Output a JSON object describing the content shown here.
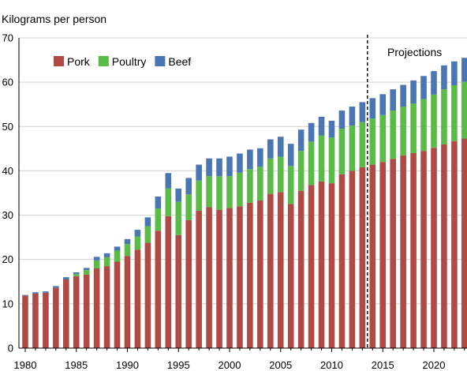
{
  "chart_data": {
    "type": "bar",
    "stacked": true,
    "ylabel": "Kilograms per person",
    "ylim": [
      0,
      70
    ],
    "yticks": [
      0,
      10,
      20,
      30,
      40,
      50,
      60,
      70
    ],
    "xlim": [
      1980,
      2023
    ],
    "xticks": [
      1980,
      1985,
      1990,
      1995,
      2000,
      2005,
      2010,
      2015,
      2020
    ],
    "grid": true,
    "legend_position": "top-left",
    "categories": [
      1980,
      1981,
      1982,
      1983,
      1984,
      1985,
      1986,
      1987,
      1988,
      1989,
      1990,
      1991,
      1992,
      1993,
      1994,
      1995,
      1996,
      1997,
      1998,
      1999,
      2000,
      2001,
      2002,
      2003,
      2004,
      2005,
      2006,
      2007,
      2008,
      2009,
      2010,
      2011,
      2012,
      2013,
      2014,
      2015,
      2016,
      2017,
      2018,
      2019,
      2020,
      2021,
      2022,
      2023
    ],
    "series": [
      {
        "name": "Pork",
        "color": "#b04a45",
        "values": [
          11.8,
          12.3,
          12.5,
          13.6,
          15.5,
          16.2,
          16.6,
          18.0,
          18.5,
          19.5,
          20.8,
          22.2,
          23.8,
          26.5,
          29.8,
          25.5,
          28.9,
          31.0,
          31.8,
          31.2,
          31.6,
          32.0,
          32.8,
          33.3,
          34.8,
          35.2,
          32.5,
          35.5,
          36.8,
          37.6,
          37.2,
          39.2,
          40.0,
          40.8,
          41.4,
          42.0,
          42.7,
          43.5,
          44.0,
          44.5,
          45.2,
          46.0,
          46.7,
          47.3
        ]
      },
      {
        "name": "Poultry",
        "color": "#5abb47",
        "values": [
          0.0,
          0.0,
          0.0,
          0.0,
          0.0,
          0.5,
          1.0,
          1.8,
          2.0,
          2.5,
          2.7,
          3.0,
          3.7,
          5.0,
          6.2,
          7.5,
          5.8,
          6.8,
          7.0,
          7.6,
          7.2,
          7.6,
          7.6,
          7.6,
          8.0,
          8.0,
          8.6,
          9.0,
          9.8,
          10.4,
          10.3,
          10.3,
          10.2,
          10.2,
          10.4,
          10.6,
          10.9,
          11.0,
          11.2,
          11.7,
          12.0,
          12.4,
          12.6,
          12.8
        ]
      },
      {
        "name": "Beef",
        "color": "#4a77b4",
        "values": [
          0.2,
          0.3,
          0.3,
          0.4,
          0.5,
          0.4,
          0.5,
          0.8,
          0.9,
          0.9,
          1.1,
          1.5,
          2.0,
          2.7,
          3.5,
          3.0,
          3.7,
          3.6,
          4.0,
          4.0,
          4.4,
          4.3,
          4.4,
          4.2,
          4.3,
          4.5,
          5.0,
          4.8,
          4.2,
          4.2,
          3.8,
          4.1,
          4.3,
          4.5,
          4.6,
          4.7,
          4.8,
          4.9,
          5.2,
          5.2,
          5.3,
          5.4,
          5.4,
          5.4
        ]
      }
    ],
    "projection_start": 2013.5,
    "annotation": "Projections"
  }
}
